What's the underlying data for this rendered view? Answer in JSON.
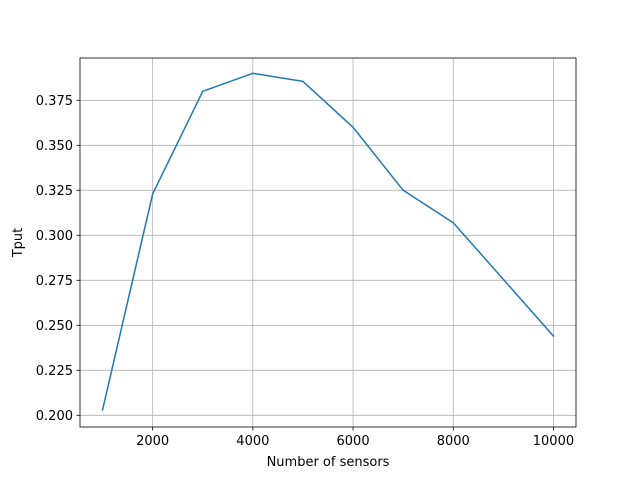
{
  "chart_data": {
    "type": "line",
    "title": "",
    "xlabel": "Number of sensors",
    "ylabel": "Tput",
    "xlim": [
      550,
      10450
    ],
    "ylim": [
      0.1935,
      0.3985
    ],
    "grid": true,
    "xticks": [
      2000,
      4000,
      6000,
      8000,
      10000
    ],
    "xtick_labels": [
      "2000",
      "4000",
      "6000",
      "8000",
      "10000"
    ],
    "yticks": [
      0.2,
      0.225,
      0.25,
      0.275,
      0.3,
      0.325,
      0.35,
      0.375
    ],
    "ytick_labels": [
      "0.200",
      "0.225",
      "0.250",
      "0.275",
      "0.300",
      "0.325",
      "0.350",
      "0.375"
    ],
    "series": [
      {
        "name": "Tput",
        "color": "#1f77b4",
        "x": [
          1000,
          2000,
          3000,
          4000,
          5000,
          6000,
          7000,
          8000,
          10000
        ],
        "y": [
          0.203,
          0.323,
          0.38,
          0.39,
          0.3855,
          0.36,
          0.325,
          0.307,
          0.244
        ]
      }
    ]
  }
}
